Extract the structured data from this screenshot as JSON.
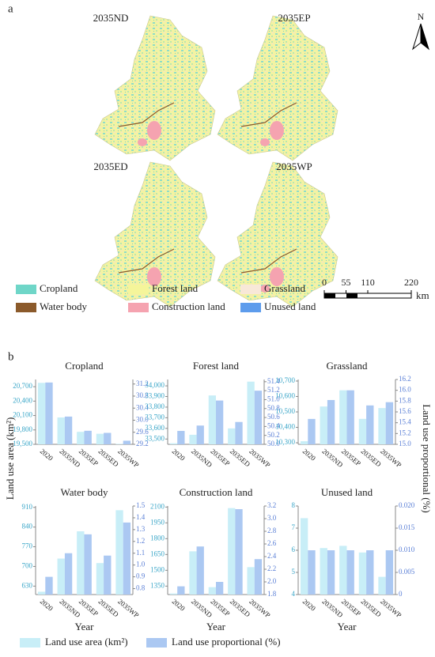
{
  "panel_labels": [
    "a",
    "b"
  ],
  "maps": {
    "titles": [
      "2035ND",
      "2035EP",
      "2035ED",
      "2035WP"
    ],
    "north": "N",
    "legend": [
      {
        "name": "Cropland",
        "color": "#6fd6c8"
      },
      {
        "name": "Forest land",
        "color": "#f5f59a"
      },
      {
        "name": "Grassland",
        "color": "#f8e8d8"
      },
      {
        "name": "Water body",
        "color": "#8b5a2b"
      },
      {
        "name": "Construction land",
        "color": "#f5a3b0"
      },
      {
        "name": "Unused land",
        "color": "#5d9cec"
      }
    ],
    "scale_ticks": [
      0,
      55,
      110,
      220
    ],
    "scale_unit": "km"
  },
  "ylabel": "Land use area (km²)",
  "y2label": "Land use proportional (%)",
  "chart_data": [
    {
      "type": "bar",
      "title": "Cropland",
      "categories": [
        "2020",
        "2035ND",
        "2035EP",
        "2035ED",
        "2035WP"
      ],
      "series": [
        {
          "name": "Land use area (km²)",
          "color": "#c8eef7",
          "values": [
            20780,
            20060,
            19760,
            19720,
            19510
          ]
        },
        {
          "name": "Land use proportional (%)",
          "color": "#abc8f2",
          "axis": "y2",
          "values": [
            31.25,
            30.12,
            29.65,
            29.58,
            29.32
          ]
        }
      ],
      "ylim": [
        19500,
        20850
      ],
      "yticks": [
        {
          "value": 19500,
          "label": "19,500"
        },
        {
          "value": 19800,
          "label": "19,800"
        },
        {
          "value": 20100,
          "label": "20,100"
        },
        {
          "value": 20400,
          "label": "20,400"
        },
        {
          "value": 20700,
          "label": "20,700"
        }
      ],
      "y2lim": [
        29.2,
        31.35
      ],
      "y2ticks": [
        29.2,
        29.6,
        {
          "value": 30,
          "label": "30.0"
        },
        30.4,
        30.8,
        31.2
      ]
    },
    {
      "type": "bar",
      "title": "Forest land",
      "categories": [
        "2020",
        "2035ND",
        "2035EP",
        "2035ED",
        "2035WP"
      ],
      "series": [
        {
          "name": "Land use area (km²)",
          "color": "#c8eef7",
          "values": [
            33460,
            33540,
            33910,
            33600,
            34040
          ]
        },
        {
          "name": "Land use proportional (%)",
          "color": "#abc8f2",
          "axis": "y2",
          "values": [
            50.3,
            50.42,
            50.98,
            50.5,
            51.2
          ]
        }
      ],
      "ylim": [
        33450,
        34060
      ],
      "yticks": [
        {
          "value": 33500,
          "label": "33,500"
        },
        {
          "value": 33600,
          "label": "33,600"
        },
        {
          "value": 33700,
          "label": "33,700"
        },
        {
          "value": 33800,
          "label": "33,800"
        },
        {
          "value": 33900,
          "label": "33,900"
        },
        {
          "value": 34000,
          "label": "34,000"
        }
      ],
      "y2lim": [
        50.0,
        51.45
      ],
      "y2ticks": [
        {
          "value": 50,
          "label": "50.0"
        },
        50.2,
        50.4,
        50.6,
        50.8,
        {
          "value": 51,
          "label": "51.0"
        },
        51.2,
        51.4
      ]
    },
    {
      "type": "bar",
      "title": "Grassland",
      "categories": [
        "2020",
        "2035ND",
        "2035EP",
        "2035ED",
        "2035WP"
      ],
      "series": [
        {
          "name": "Land use area (km²)",
          "color": "#c8eef7",
          "values": [
            10310,
            10535,
            10640,
            10455,
            10525
          ]
        },
        {
          "name": "Land use proportional (%)",
          "color": "#abc8f2",
          "axis": "y2",
          "values": [
            15.47,
            15.82,
            16.0,
            15.72,
            15.78
          ]
        }
      ],
      "ylim": [
        10290,
        10710
      ],
      "yticks": [
        {
          "value": 10300,
          "label": "10,300"
        },
        {
          "value": 10400,
          "label": "10,400"
        },
        {
          "value": 10500,
          "label": "10,500"
        },
        {
          "value": 10600,
          "label": "10,600"
        },
        {
          "value": 10700,
          "label": "10,700"
        }
      ],
      "y2lim": [
        15.0,
        16.2
      ],
      "y2ticks": [
        {
          "value": 15,
          "label": "15.0"
        },
        15.2,
        15.4,
        15.6,
        15.8,
        {
          "value": 16,
          "label": "16.0"
        },
        16.2
      ]
    },
    {
      "type": "bar",
      "title": "Water body",
      "categories": [
        "2020",
        "2035ND",
        "2035EP",
        "2035ED",
        "2035WP"
      ],
      "xlabel": "Year",
      "series": [
        {
          "name": "Land use area (km²)",
          "color": "#c8eef7",
          "values": [
            610,
            728,
            825,
            712,
            900
          ]
        },
        {
          "name": "Land use proportional (%)",
          "color": "#abc8f2",
          "axis": "y2",
          "values": [
            0.9,
            1.1,
            1.26,
            1.08,
            1.36
          ]
        }
      ],
      "ylim": [
        600,
        915
      ],
      "yticks": [
        630,
        700,
        770,
        840,
        910
      ],
      "y2lim": [
        0.75,
        1.5
      ],
      "y2ticks": [
        0.8,
        0.9,
        {
          "value": 1,
          "label": "1.0"
        },
        1.1,
        1.2,
        1.3,
        1.4,
        1.5
      ]
    },
    {
      "type": "bar",
      "title": "Construction land",
      "categories": [
        "2020",
        "2035ND",
        "2035EP",
        "2035ED",
        "2035WP"
      ],
      "xlabel": "Year",
      "series": [
        {
          "name": "Land use area (km²)",
          "color": "#c8eef7",
          "values": [
            1280,
            1680,
            1340,
            2090,
            1530
          ]
        },
        {
          "name": "Land use proportional (%)",
          "color": "#abc8f2",
          "axis": "y2",
          "values": [
            1.93,
            2.56,
            2.0,
            3.15,
            2.36
          ]
        }
      ],
      "ylim": [
        1270,
        2110
      ],
      "yticks": [
        1350,
        1500,
        1650,
        1800,
        1950,
        2100
      ],
      "y2lim": [
        1.8,
        3.2
      ],
      "y2ticks": [
        1.8,
        {
          "value": 2,
          "label": "2.0"
        },
        2.2,
        2.4,
        2.6,
        2.8,
        {
          "value": 3,
          "label": "3.0"
        },
        3.2
      ]
    },
    {
      "type": "bar",
      "title": "Unused land",
      "categories": [
        "2020",
        "2035ND",
        "2035EP",
        "2035ED",
        "2035WP"
      ],
      "xlabel": "Year",
      "series": [
        {
          "name": "Land use area (km²)",
          "color": "#c8eef7",
          "values": [
            7.45,
            6.1,
            6.2,
            5.9,
            4.8
          ]
        },
        {
          "name": "Land use proportional (%)",
          "color": "#abc8f2",
          "axis": "y2",
          "values": [
            0.01,
            0.01,
            0.01,
            0.01,
            0.01
          ]
        }
      ],
      "ylim": [
        4,
        8
      ],
      "yticks": [
        4,
        5,
        6,
        7,
        8
      ],
      "y2lim": [
        0,
        0.02
      ],
      "y2ticks": [
        0,
        0.005,
        {
          "value": 0.01,
          "label": "0.010"
        },
        0.015,
        {
          "value": 0.02,
          "label": "0.020"
        }
      ]
    }
  ]
}
